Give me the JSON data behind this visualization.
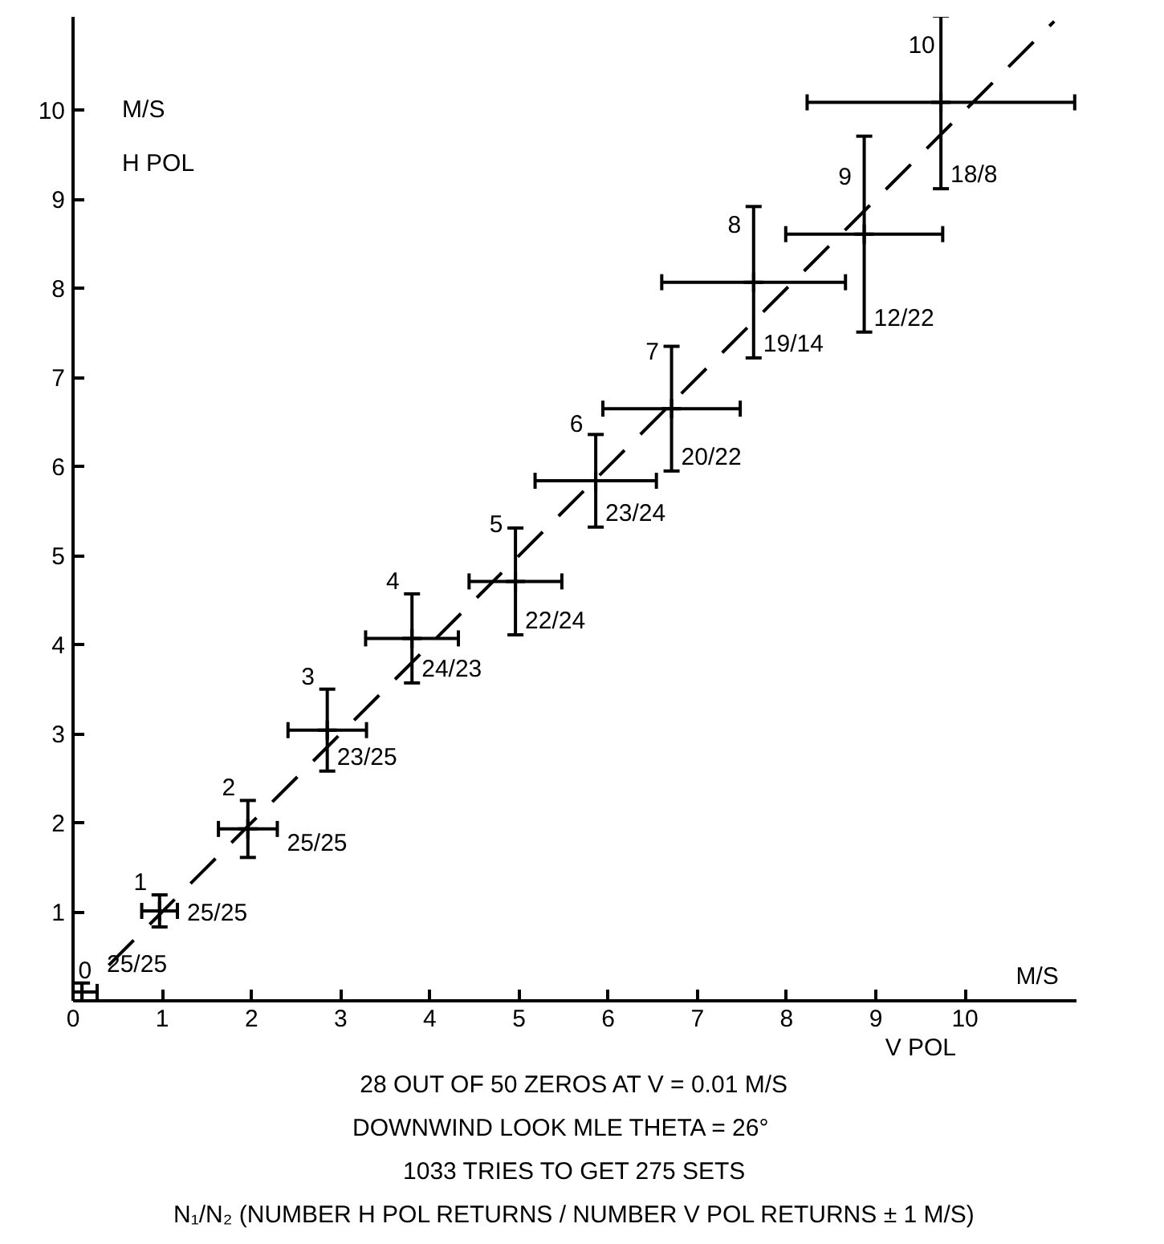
{
  "chart_data": {
    "type": "scatter",
    "xlabel": "V POL\nM/S",
    "ylabel": "M/S\nH POL",
    "xlim": [
      0,
      11.25
    ],
    "ylim": [
      0,
      11.05
    ],
    "xticks": [
      0,
      1,
      2,
      3,
      4,
      5,
      6,
      7,
      8,
      9,
      10
    ],
    "yticks": [
      1,
      2,
      3,
      4,
      5,
      6,
      7,
      8,
      9,
      10
    ],
    "series": [
      {
        "color": "#000000",
        "marker": "cross",
        "x": [
          0.1,
          0.97,
          1.96,
          2.85,
          3.8,
          4.96,
          5.86,
          6.71,
          7.63,
          8.87,
          9.73
        ],
        "values": [
          0.1,
          1.01,
          1.93,
          3.04,
          4.07,
          4.71,
          5.84,
          6.65,
          8.07,
          8.61,
          10.09
        ],
        "xerrors": [
          0.17,
          0.2,
          0.33,
          0.44,
          0.52,
          0.52,
          0.68,
          0.77,
          1.03,
          0.88,
          1.5
        ],
        "errors": [
          0.1,
          0.18,
          0.32,
          0.46,
          0.5,
          0.6,
          0.52,
          0.7,
          0.85,
          1.1,
          0.97
        ]
      },
      {
        "type": "line",
        "color": "#000000",
        "line_style": "dashed",
        "x": [
          0.4,
          11.0
        ],
        "values": [
          0.4,
          11.0
        ]
      }
    ],
    "annotations": [
      {
        "text": "0",
        "x": 0.1,
        "y": 0.1
      },
      {
        "text": "25/25",
        "x": 0.1,
        "y": 0.1
      },
      {
        "text": "1",
        "x": 0.97,
        "y": 1.01
      },
      {
        "text": "25/25",
        "x": 0.97,
        "y": 1.01
      },
      {
        "text": "2",
        "x": 1.96,
        "y": 1.93
      },
      {
        "text": "25/25",
        "x": 1.96,
        "y": 1.93
      },
      {
        "text": "3",
        "x": 2.85,
        "y": 3.04
      },
      {
        "text": "23/25",
        "x": 2.85,
        "y": 3.04
      },
      {
        "text": "4",
        "x": 3.8,
        "y": 4.07
      },
      {
        "text": "24/23",
        "x": 3.8,
        "y": 4.07
      },
      {
        "text": "5",
        "x": 4.96,
        "y": 4.71
      },
      {
        "text": "22/24",
        "x": 4.96,
        "y": 4.71
      },
      {
        "text": "6",
        "x": 5.86,
        "y": 5.84
      },
      {
        "text": "23/24",
        "x": 5.86,
        "y": 5.84
      },
      {
        "text": "7",
        "x": 6.71,
        "y": 6.65
      },
      {
        "text": "20/22",
        "x": 6.71,
        "y": 6.65
      },
      {
        "text": "8",
        "x": 7.63,
        "y": 8.07
      },
      {
        "text": "19/14",
        "x": 7.63,
        "y": 8.07
      },
      {
        "text": "9",
        "x": 8.87,
        "y": 8.61
      },
      {
        "text": "12/22",
        "x": 8.87,
        "y": 8.61
      },
      {
        "text": "10",
        "x": 9.73,
        "y": 10.09
      },
      {
        "text": "18/8",
        "x": 9.73,
        "y": 10.09
      },
      "28 OUT OF 50 ZEROS AT V = 0.01 M/S",
      "DOWNWIND LOOK   MLE   THETA = 26°",
      "1033 TRIES TO GET 275 SETS",
      "N₁/N₂ (NUMBER H POL RETURNS / NUMBER V POL RETURNS ± 1 M/S)"
    ]
  }
}
